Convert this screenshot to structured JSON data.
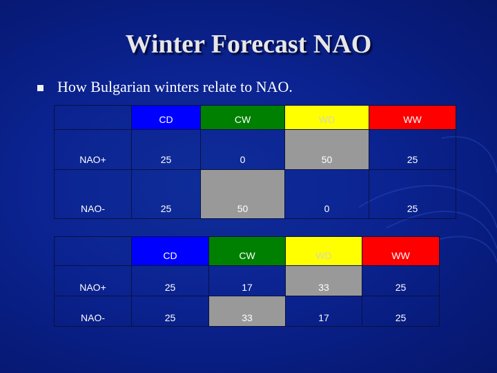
{
  "slide": {
    "title": "Winter Forecast NAO",
    "bullet": "How Bulgarian winters relate to NAO."
  },
  "colors": {
    "background": "#0b2390",
    "cd": "#0000ff",
    "cw": "#008000",
    "wd": "#ffff00",
    "ww": "#ff0000",
    "highlight": "#999999"
  },
  "table1": {
    "headers": [
      "",
      "CD",
      "CW",
      "WD",
      "WW"
    ],
    "rows": [
      {
        "label": "NAO+",
        "values": [
          "25",
          "0",
          "50",
          "25"
        ]
      },
      {
        "label": "NAO-",
        "values": [
          "25",
          "50",
          "0",
          "25"
        ]
      }
    ]
  },
  "table2": {
    "headers": [
      "",
      "CD",
      "CW",
      "WD",
      "WW"
    ],
    "rows": [
      {
        "label": "NAO+",
        "values": [
          "25",
          "17",
          "33",
          "25"
        ]
      },
      {
        "label": "NAO-",
        "values": [
          "25",
          "33",
          "17",
          "25"
        ]
      }
    ]
  }
}
